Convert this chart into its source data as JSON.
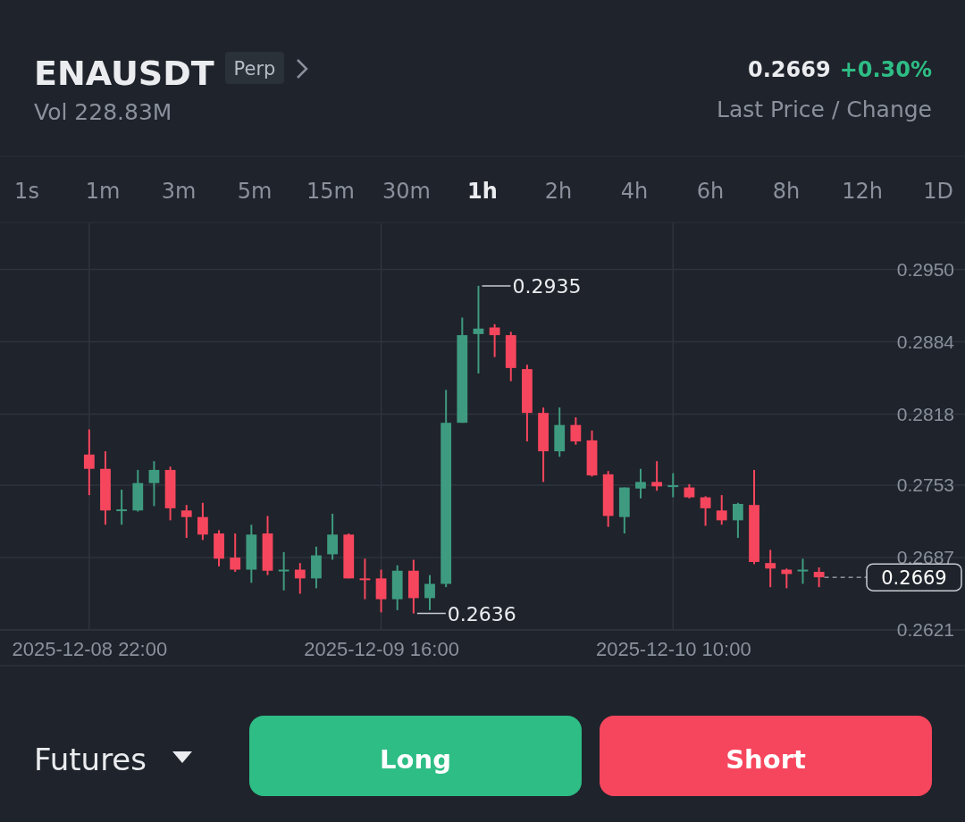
{
  "chart_data": {
    "type": "candlestick",
    "title": "ENAUSDT",
    "subtitle": "Vol 228.83M",
    "x": [
      "2025-12-08T22:00",
      "2025-12-08T23:00",
      "2025-12-09T00:00",
      "2025-12-09T01:00",
      "2025-12-09T02:00",
      "2025-12-09T03:00",
      "2025-12-09T04:00",
      "2025-12-09T05:00",
      "2025-12-09T06:00",
      "2025-12-09T07:00",
      "2025-12-09T08:00",
      "2025-12-09T09:00",
      "2025-12-09T10:00",
      "2025-12-09T11:00",
      "2025-12-09T12:00",
      "2025-12-09T13:00",
      "2025-12-09T14:00",
      "2025-12-09T15:00",
      "2025-12-09T16:00",
      "2025-12-09T17:00",
      "2025-12-09T18:00",
      "2025-12-09T19:00",
      "2025-12-09T20:00",
      "2025-12-09T21:00",
      "2025-12-09T22:00",
      "2025-12-09T23:00",
      "2025-12-10T00:00",
      "2025-12-10T01:00",
      "2025-12-10T02:00",
      "2025-12-10T03:00",
      "2025-12-10T04:00",
      "2025-12-10T05:00",
      "2025-12-10T06:00",
      "2025-12-10T07:00",
      "2025-12-10T08:00",
      "2025-12-10T09:00",
      "2025-12-10T10:00",
      "2025-12-10T11:00",
      "2025-12-10T12:00",
      "2025-12-10T13:00",
      "2025-12-10T14:00",
      "2025-12-10T15:00",
      "2025-12-10T16:00",
      "2025-12-10T17:00",
      "2025-12-10T18:00",
      "2025-12-10T19:00"
    ],
    "ohlc": [
      [
        0.2781,
        0.2804,
        0.2744,
        0.2768
      ],
      [
        0.2768,
        0.2784,
        0.2717,
        0.273
      ],
      [
        0.273,
        0.2749,
        0.2717,
        0.2731
      ],
      [
        0.273,
        0.2767,
        0.2729,
        0.2755
      ],
      [
        0.2755,
        0.2775,
        0.2734,
        0.2767
      ],
      [
        0.2767,
        0.277,
        0.2721,
        0.2732
      ],
      [
        0.273,
        0.2735,
        0.2705,
        0.2724
      ],
      [
        0.2724,
        0.2737,
        0.2703,
        0.2708
      ],
      [
        0.2709,
        0.2712,
        0.2679,
        0.2686
      ],
      [
        0.2687,
        0.2709,
        0.2674,
        0.2676
      ],
      [
        0.2676,
        0.2717,
        0.2664,
        0.2708
      ],
      [
        0.2709,
        0.2725,
        0.2671,
        0.2675
      ],
      [
        0.2675,
        0.2692,
        0.2657,
        0.2676
      ],
      [
        0.2676,
        0.2682,
        0.2654,
        0.2668
      ],
      [
        0.2668,
        0.2697,
        0.2659,
        0.2689
      ],
      [
        0.269,
        0.2727,
        0.2685,
        0.2708
      ],
      [
        0.2708,
        0.2709,
        0.2668,
        0.2668
      ],
      [
        0.2668,
        0.2686,
        0.2649,
        0.2667
      ],
      [
        0.2668,
        0.2676,
        0.2637,
        0.2649
      ],
      [
        0.2649,
        0.268,
        0.2639,
        0.2675
      ],
      [
        0.2675,
        0.2685,
        0.2636,
        0.265
      ],
      [
        0.265,
        0.2671,
        0.2639,
        0.2663
      ],
      [
        0.2663,
        0.284,
        0.266,
        0.281
      ],
      [
        0.281,
        0.2906,
        0.281,
        0.289
      ],
      [
        0.2891,
        0.2935,
        0.2855,
        0.2896
      ],
      [
        0.2897,
        0.29,
        0.287,
        0.289
      ],
      [
        0.289,
        0.2893,
        0.2848,
        0.286
      ],
      [
        0.2859,
        0.2863,
        0.2793,
        0.2819
      ],
      [
        0.2819,
        0.2824,
        0.2756,
        0.2784
      ],
      [
        0.2784,
        0.2824,
        0.2779,
        0.2808
      ],
      [
        0.2808,
        0.2815,
        0.279,
        0.2793
      ],
      [
        0.2794,
        0.2803,
        0.2761,
        0.2762
      ],
      [
        0.2763,
        0.2766,
        0.2715,
        0.2725
      ],
      [
        0.2724,
        0.2751,
        0.2709,
        0.2751
      ],
      [
        0.275,
        0.2768,
        0.2741,
        0.2756
      ],
      [
        0.2756,
        0.2775,
        0.2748,
        0.2752
      ],
      [
        0.2752,
        0.2764,
        0.2742,
        0.2753
      ],
      [
        0.2751,
        0.2754,
        0.2741,
        0.2742
      ],
      [
        0.2742,
        0.2743,
        0.2716,
        0.2732
      ],
      [
        0.273,
        0.2744,
        0.2717,
        0.2721
      ],
      [
        0.2721,
        0.2737,
        0.2705,
        0.2736
      ],
      [
        0.2735,
        0.2767,
        0.2681,
        0.2683
      ],
      [
        0.2682,
        0.2694,
        0.266,
        0.2677
      ],
      [
        0.2676,
        0.2677,
        0.2659,
        0.2672
      ],
      [
        0.2675,
        0.2686,
        0.2663,
        0.2676
      ],
      [
        0.2674,
        0.2678,
        0.266,
        0.2669
      ]
    ],
    "xlim": [
      "2025-12-08T16:30",
      "2025-12-11T04:00"
    ],
    "xticks": [
      {
        "value": "2025-12-08T22:00",
        "label": "2025-12-08 22:00"
      },
      {
        "value": "2025-12-09T16:00",
        "label": "2025-12-09 16:00"
      },
      {
        "value": "2025-12-10T10:00",
        "label": "2025-12-10 10:00"
      }
    ],
    "ylim": [
      0.2621,
      0.2992
    ],
    "yticks": [
      0.2621,
      0.2687,
      0.2753,
      0.2818,
      0.2884,
      {
        "value": 0.295,
        "label": "0.2950"
      }
    ],
    "grid": true,
    "ref_lines": [
      {
        "axis": "y",
        "value": 0.2669,
        "label": "0.2669",
        "color": "#c8ccd2",
        "line_style": "dashed"
      }
    ],
    "annotations": [
      "Perp",
      "0.2669",
      "+0.30%",
      "Last Price / Change",
      "1s",
      "1m",
      "3m",
      "5m",
      "15m",
      "30m",
      "1h",
      "2h",
      "4h",
      "6h",
      "8h",
      "12h",
      "1D",
      "Futures",
      "Long",
      "Short",
      {
        "text": "0.2935",
        "x": "2025-12-09T22:00",
        "y": 0.2935
      },
      {
        "text": "0.2636",
        "x": "2025-12-09T18:00",
        "y": 0.2636
      }
    ]
  }
}
